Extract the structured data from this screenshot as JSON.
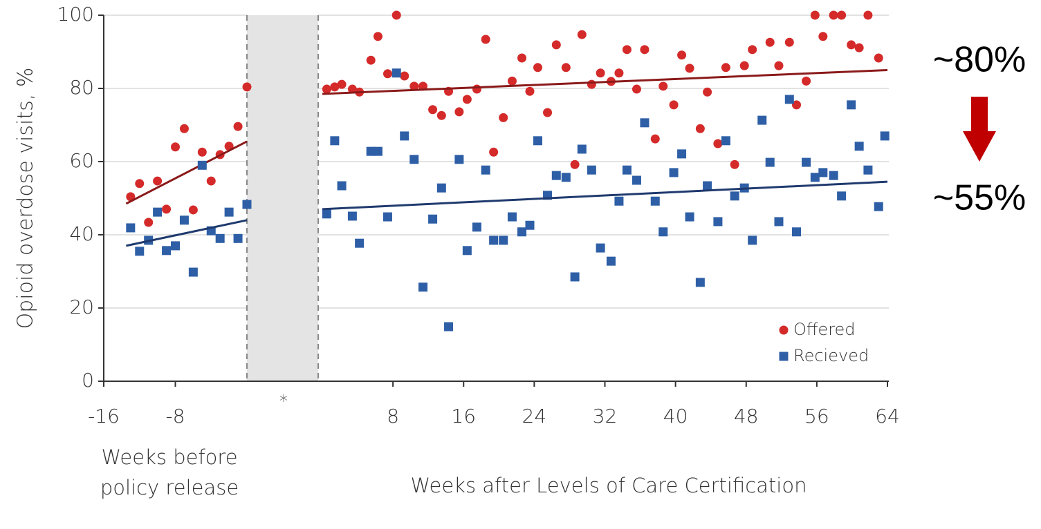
{
  "chart_data": [
    {
      "type": "scatter",
      "ylabel": "Opioid overdose visits, %",
      "xlabel": "Weeks before policy release",
      "xlim": [
        -16,
        0
      ],
      "xticks": [
        -16,
        -8
      ],
      "ylim": [
        0,
        100
      ],
      "yticks": [
        0,
        20,
        40,
        60,
        80,
        100
      ],
      "grid": true,
      "series": [
        {
          "color": "#d42a2a",
          "marker": "circle",
          "x": [
            -13,
            -12,
            -11,
            -10,
            -9,
            -8,
            -7,
            -6,
            -5,
            -4,
            -3,
            -2,
            -1,
            0
          ],
          "values": [
            50.4,
            54,
            43.4,
            54.7,
            47,
            64,
            69,
            46.8,
            62.6,
            54.7,
            61.9,
            64.2,
            69.6,
            80.4
          ],
          "trend": {
            "color": "#8b1a1a",
            "x": [
              -13.5,
              0
            ],
            "values": [
              48.5,
              65.5
            ]
          }
        },
        {
          "color": "#2e5fa6",
          "marker": "square",
          "x": [
            -13,
            -12,
            -11,
            -10,
            -9,
            -8,
            -7,
            -6,
            -5,
            -4,
            -3,
            -2,
            -1,
            0
          ],
          "values": [
            41.9,
            35.5,
            38.5,
            46.2,
            35.7,
            37,
            44,
            29.8,
            59,
            41.1,
            39,
            46.2,
            39,
            48.3
          ],
          "trend": {
            "color": "#1f3a6e",
            "x": [
              -13.5,
              0
            ],
            "values": [
              37,
              44
            ]
          }
        }
      ]
    },
    {
      "type": "scatter",
      "xlabel": "Weeks after Levels of Care Certification",
      "xlim": [
        0,
        64
      ],
      "xticks": [
        8,
        16,
        24,
        32,
        40,
        48,
        56,
        64
      ],
      "ylim": [
        0,
        100
      ],
      "yticks": [
        0,
        20,
        40,
        60,
        80,
        100
      ],
      "grid": true,
      "legend": "lower right",
      "annotations": [
        "~80%",
        "~55%"
      ],
      "series": [
        {
          "name": "Offered",
          "color": "#d42a2a",
          "marker": "circle",
          "x": [
            0.5,
            1.4,
            2.2,
            3.4,
            4.2,
            5.5,
            6.3,
            7.4,
            8.4,
            9.3,
            10.4,
            11.4,
            12.5,
            13.5,
            14.3,
            15.5,
            16.4,
            17.5,
            18.5,
            19.4,
            20.5,
            21.5,
            22.6,
            23.5,
            24.4,
            25.5,
            26.5,
            27.6,
            28.6,
            29.4,
            30.5,
            31.5,
            32.7,
            33.6,
            34.5,
            35.6,
            36.5,
            37.7,
            38.6,
            39.8,
            40.7,
            41.6,
            42.8,
            43.6,
            44.8,
            45.7,
            46.7,
            47.8,
            48.7,
            50.7,
            51.7,
            52.9,
            53.7,
            54.8,
            55.8,
            56.7,
            57.9,
            58.8,
            59.9,
            60.8,
            61.8,
            63.0
          ],
          "values": [
            79.8,
            80.4,
            81.1,
            79.8,
            79,
            87.7,
            94.2,
            84,
            100,
            83.4,
            80.6,
            80.6,
            74.2,
            72.6,
            79.2,
            73.6,
            77,
            79.8,
            93.4,
            62.6,
            72,
            82,
            88.3,
            79.2,
            85.7,
            73.4,
            91.9,
            85.7,
            59.2,
            94.7,
            81.1,
            84.2,
            81.9,
            84.2,
            90.6,
            79.8,
            90.6,
            66.2,
            80.6,
            75.5,
            89.1,
            85.5,
            69,
            79,
            64.9,
            85.7,
            59.2,
            86.2,
            90.6,
            92.6,
            86.2,
            92.6,
            75.5,
            82,
            100,
            94.2,
            100,
            100,
            91.9,
            91.1,
            100,
            88.3
          ],
          "trend": {
            "color": "#8b1a1a",
            "x": [
              0,
              64
            ],
            "values": [
              78.5,
              85
            ]
          }
        },
        {
          "name": "Recieved",
          "color": "#2e5fa6",
          "marker": "square",
          "x": [
            0.5,
            1.4,
            2.2,
            3.4,
            4.2,
            5.5,
            6.3,
            7.4,
            8.4,
            9.3,
            10.4,
            11.4,
            12.5,
            13.5,
            14.3,
            15.5,
            16.4,
            17.5,
            18.5,
            19.4,
            20.5,
            21.5,
            22.6,
            23.5,
            24.4,
            25.5,
            26.5,
            27.6,
            28.6,
            29.4,
            30.5,
            31.5,
            32.7,
            33.6,
            34.5,
            35.6,
            36.5,
            37.7,
            38.6,
            39.8,
            40.7,
            41.6,
            42.8,
            43.6,
            44.8,
            45.7,
            46.7,
            47.8,
            48.7,
            49.8,
            50.7,
            51.7,
            52.9,
            53.7,
            54.8,
            55.8,
            56.7,
            57.9,
            58.8,
            59.9,
            60.8,
            61.8,
            63.0,
            63.7
          ],
          "values": [
            45.7,
            65.7,
            53.4,
            45.1,
            37.7,
            62.8,
            62.8,
            44.9,
            84.2,
            67,
            60.6,
            25.7,
            44.3,
            52.8,
            14.9,
            60.6,
            35.7,
            42.1,
            57.7,
            38.5,
            38.5,
            44.9,
            40.8,
            42.6,
            65.7,
            50.8,
            56.2,
            55.7,
            28.5,
            63.4,
            57.7,
            36.4,
            32.8,
            49.2,
            57.7,
            54.9,
            70.6,
            49.2,
            40.8,
            57,
            62.1,
            44.9,
            27,
            53.4,
            43.6,
            65.7,
            50.6,
            52.8,
            38.5,
            71.3,
            59.8,
            43.6,
            77,
            40.8,
            59.8,
            55.7,
            57,
            56.2,
            50.6,
            75.5,
            64.2,
            57.7,
            47.7,
            67
          ],
          "trend": {
            "color": "#1f3a6e",
            "x": [
              0,
              64
            ],
            "values": [
              47,
              54.5
            ]
          }
        }
      ]
    }
  ],
  "axis_break": {
    "label": "*"
  }
}
